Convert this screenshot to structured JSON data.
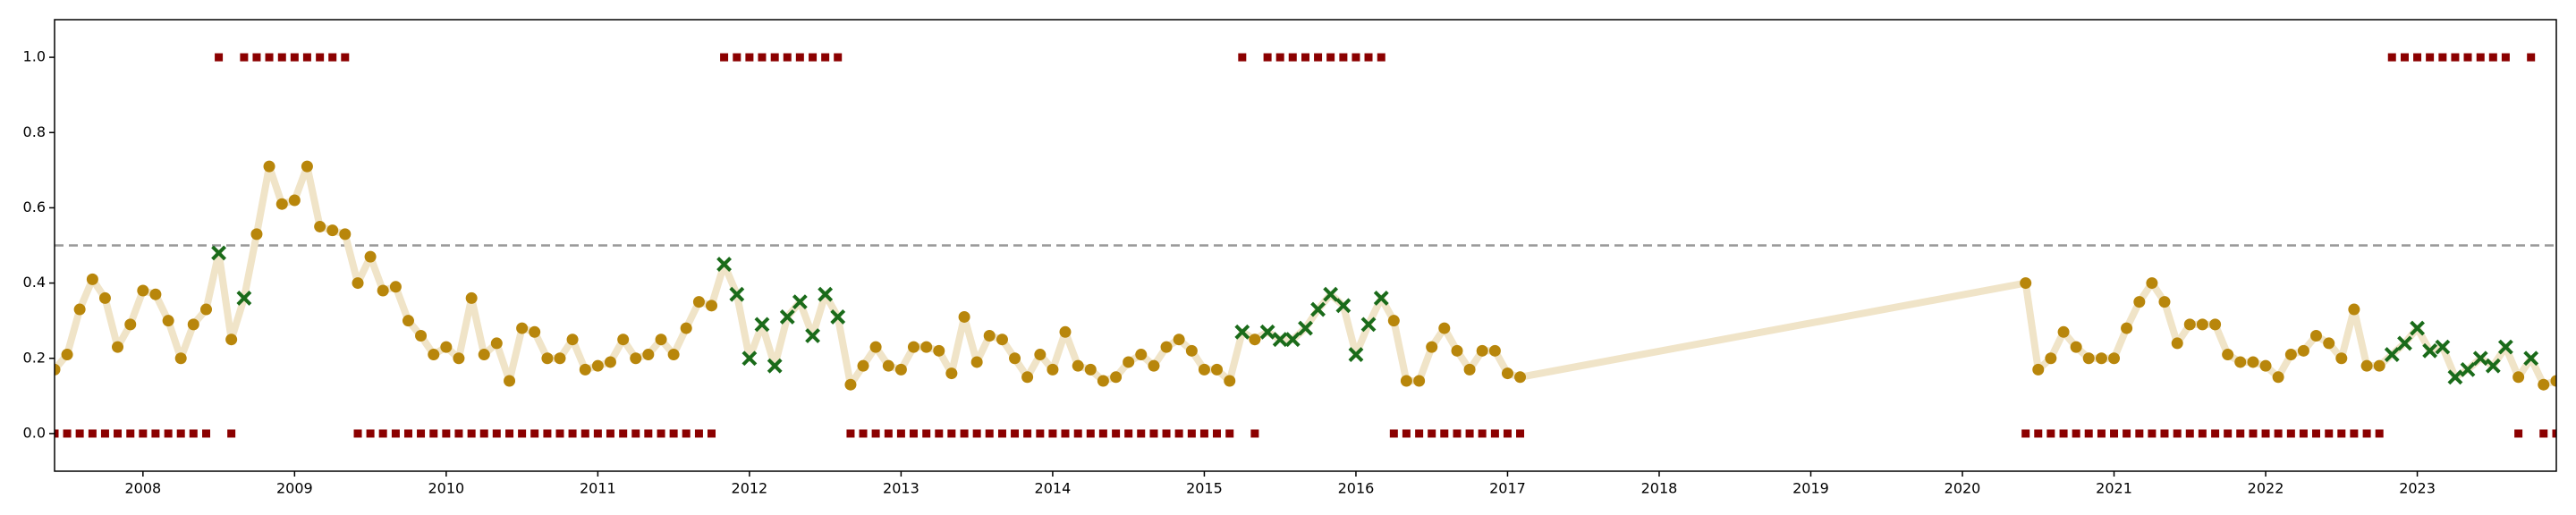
{
  "chart_data": {
    "type": "line",
    "x": [
      2007.417,
      2007.5,
      2007.583,
      2007.667,
      2007.75,
      2007.833,
      2007.917,
      2008,
      2008.083,
      2008.167,
      2008.25,
      2008.333,
      2008.417,
      2008.5,
      2008.583,
      2008.667,
      2008.75,
      2008.833,
      2008.917,
      2009,
      2009.083,
      2009.167,
      2009.25,
      2009.333,
      2009.417,
      2009.5,
      2009.583,
      2009.667,
      2009.75,
      2009.833,
      2009.917,
      2010,
      2010.083,
      2010.167,
      2010.25,
      2010.333,
      2010.417,
      2010.5,
      2010.583,
      2010.667,
      2010.75,
      2010.833,
      2010.917,
      2011,
      2011.083,
      2011.167,
      2011.25,
      2011.333,
      2011.417,
      2011.5,
      2011.583,
      2011.667,
      2011.75,
      2011.833,
      2011.917,
      2012,
      2012.083,
      2012.167,
      2012.25,
      2012.333,
      2012.417,
      2012.5,
      2012.583,
      2012.667,
      2012.75,
      2012.833,
      2012.917,
      2013,
      2013.083,
      2013.167,
      2013.25,
      2013.333,
      2013.417,
      2013.5,
      2013.583,
      2013.667,
      2013.75,
      2013.833,
      2013.917,
      2014,
      2014.083,
      2014.167,
      2014.25,
      2014.333,
      2014.417,
      2014.5,
      2014.583,
      2014.667,
      2014.75,
      2014.833,
      2014.917,
      2015,
      2015.083,
      2015.167,
      2015.25,
      2015.333,
      2015.417,
      2015.5,
      2015.583,
      2015.667,
      2015.75,
      2015.833,
      2015.917,
      2016,
      2016.083,
      2016.167,
      2016.25,
      2016.333,
      2016.417,
      2016.5,
      2016.583,
      2016.667,
      2016.75,
      2016.833,
      2016.917,
      2017,
      2017.083,
      2020.417,
      2020.5,
      2020.583,
      2020.667,
      2020.75,
      2020.833,
      2020.917,
      2021,
      2021.083,
      2021.167,
      2021.25,
      2021.333,
      2021.417,
      2021.5,
      2021.583,
      2021.667,
      2021.75,
      2021.833,
      2021.917,
      2022,
      2022.083,
      2022.167,
      2022.25,
      2022.333,
      2022.417,
      2022.5,
      2022.583,
      2022.667,
      2022.75,
      2022.833,
      2022.917,
      2023,
      2023.083,
      2023.167,
      2023.25,
      2023.333,
      2023.417,
      2023.5,
      2023.583,
      2023.667,
      2023.75,
      2023.833,
      2023.917
    ],
    "series": [
      {
        "color": "#f0e4c8",
        "marker": "none",
        "values": [
          0.17,
          0.21,
          0.33,
          0.41,
          0.36,
          0.23,
          0.29,
          0.38,
          0.37,
          0.3,
          0.2,
          0.29,
          0.33,
          0.48,
          0.25,
          0.36,
          0.53,
          0.71,
          0.61,
          0.62,
          0.71,
          0.55,
          0.54,
          0.53,
          0.4,
          0.47,
          0.38,
          0.39,
          0.3,
          0.26,
          0.21,
          0.23,
          0.2,
          0.36,
          0.21,
          0.24,
          0.14,
          0.28,
          0.27,
          0.2,
          0.2,
          0.25,
          0.17,
          0.18,
          0.19,
          0.25,
          0.2,
          0.21,
          0.25,
          0.21,
          0.28,
          0.35,
          0.34,
          0.45,
          0.37,
          0.2,
          0.29,
          0.18,
          0.31,
          0.35,
          0.26,
          0.37,
          0.31,
          0.13,
          0.18,
          0.23,
          0.18,
          0.17,
          0.23,
          0.23,
          0.22,
          0.16,
          0.31,
          0.19,
          0.26,
          0.25,
          0.2,
          0.15,
          0.21,
          0.17,
          0.27,
          0.18,
          0.17,
          0.14,
          0.15,
          0.19,
          0.21,
          0.18,
          0.23,
          0.25,
          0.22,
          0.17,
          0.17,
          0.14,
          0.27,
          0.25,
          0.27,
          0.25,
          0.25,
          0.28,
          0.33,
          0.37,
          0.34,
          0.21,
          0.29,
          0.36,
          0.3,
          0.14,
          0.14,
          0.23,
          0.28,
          0.22,
          0.17,
          0.22,
          0.22,
          0.16,
          0.15,
          0.4,
          0.17,
          0.2,
          0.27,
          0.23,
          0.2,
          0.2,
          0.2,
          0.28,
          0.35,
          0.4,
          0.35,
          0.24,
          0.29,
          0.29,
          0.29,
          0.21,
          0.19,
          0.19,
          0.18,
          0.15,
          0.21,
          0.22,
          0.26,
          0.24,
          0.2,
          0.33,
          0.18,
          0.18,
          0.21,
          0.24,
          0.28,
          0.22,
          0.23,
          0.15,
          0.17,
          0.2,
          0.18,
          0.23,
          0.15,
          0.2,
          0.13,
          0.14
        ]
      },
      {
        "color": "#b8860b",
        "marker": "o",
        "values": [
          0.17,
          0.21,
          0.33,
          0.41,
          0.36,
          0.23,
          0.29,
          0.38,
          0.37,
          0.3,
          0.2,
          0.29,
          0.33,
          null,
          0.25,
          null,
          0.53,
          0.71,
          0.61,
          0.62,
          0.71,
          0.55,
          0.54,
          0.53,
          0.4,
          0.47,
          0.38,
          0.39,
          0.3,
          0.26,
          0.21,
          0.23,
          0.2,
          0.36,
          0.21,
          0.24,
          0.14,
          0.28,
          0.27,
          0.2,
          0.2,
          0.25,
          0.17,
          0.18,
          0.19,
          0.25,
          0.2,
          0.21,
          0.25,
          0.21,
          0.28,
          0.35,
          0.34,
          null,
          null,
          null,
          null,
          null,
          null,
          null,
          null,
          null,
          null,
          0.13,
          0.18,
          0.23,
          0.18,
          0.17,
          0.23,
          0.23,
          0.22,
          0.16,
          0.31,
          0.19,
          0.26,
          0.25,
          0.2,
          0.15,
          0.21,
          0.17,
          0.27,
          0.18,
          0.17,
          0.14,
          0.15,
          0.19,
          0.21,
          0.18,
          0.23,
          0.25,
          0.22,
          0.17,
          0.17,
          0.14,
          null,
          0.25,
          null,
          null,
          null,
          null,
          null,
          null,
          null,
          null,
          null,
          null,
          0.3,
          0.14,
          0.14,
          0.23,
          0.28,
          0.22,
          0.17,
          0.22,
          0.22,
          0.16,
          0.15,
          0.4,
          0.17,
          0.2,
          0.27,
          0.23,
          0.2,
          0.2,
          0.2,
          0.28,
          0.35,
          0.4,
          0.35,
          0.24,
          0.29,
          0.29,
          0.29,
          0.21,
          0.19,
          0.19,
          0.18,
          0.15,
          0.21,
          0.22,
          0.26,
          0.24,
          0.2,
          0.33,
          0.18,
          0.18,
          null,
          null,
          null,
          null,
          null,
          null,
          null,
          null,
          null,
          null,
          0.15,
          null,
          0.13,
          0.14
        ]
      },
      {
        "color": "#1a6b1a",
        "marker": "x",
        "values": [
          null,
          null,
          null,
          null,
          null,
          null,
          null,
          null,
          null,
          null,
          null,
          null,
          null,
          0.48,
          null,
          0.36,
          null,
          null,
          null,
          null,
          null,
          null,
          null,
          null,
          null,
          null,
          null,
          null,
          null,
          null,
          null,
          null,
          null,
          null,
          null,
          null,
          null,
          null,
          null,
          null,
          null,
          null,
          null,
          null,
          null,
          null,
          null,
          null,
          null,
          null,
          null,
          null,
          null,
          0.45,
          0.37,
          0.2,
          0.29,
          0.18,
          0.31,
          0.35,
          0.26,
          0.37,
          0.31,
          null,
          null,
          null,
          null,
          null,
          null,
          null,
          null,
          null,
          null,
          null,
          null,
          null,
          null,
          null,
          null,
          null,
          null,
          null,
          null,
          null,
          null,
          null,
          null,
          null,
          null,
          null,
          null,
          null,
          null,
          null,
          0.27,
          null,
          0.27,
          0.25,
          0.25,
          0.28,
          0.33,
          0.37,
          0.34,
          0.21,
          0.29,
          0.36,
          null,
          null,
          null,
          null,
          null,
          null,
          null,
          null,
          null,
          null,
          null,
          null,
          null,
          null,
          null,
          null,
          null,
          null,
          null,
          null,
          null,
          null,
          null,
          null,
          null,
          null,
          null,
          null,
          null,
          null,
          null,
          null,
          null,
          null,
          null,
          null,
          null,
          null,
          null,
          null,
          0.21,
          0.24,
          0.28,
          0.22,
          0.23,
          0.15,
          0.17,
          0.2,
          0.18,
          0.23,
          null,
          0.2,
          null,
          null
        ]
      },
      {
        "color": "#8b0000",
        "marker": "s",
        "values": [
          0,
          0,
          0,
          0,
          0,
          0,
          0,
          0,
          0,
          0,
          0,
          0,
          0,
          1,
          0,
          1,
          1,
          1,
          1,
          1,
          1,
          1,
          1,
          1,
          0,
          0,
          0,
          0,
          0,
          0,
          0,
          0,
          0,
          0,
          0,
          0,
          0,
          0,
          0,
          0,
          0,
          0,
          0,
          0,
          0,
          0,
          0,
          0,
          0,
          0,
          0,
          0,
          0,
          1,
          1,
          1,
          1,
          1,
          1,
          1,
          1,
          1,
          1,
          0,
          0,
          0,
          0,
          0,
          0,
          0,
          0,
          0,
          0,
          0,
          0,
          0,
          0,
          0,
          0,
          0,
          0,
          0,
          0,
          0,
          0,
          0,
          0,
          0,
          0,
          0,
          0,
          0,
          0,
          0,
          1,
          0,
          1,
          1,
          1,
          1,
          1,
          1,
          1,
          1,
          1,
          1,
          0,
          0,
          0,
          0,
          0,
          0,
          0,
          0,
          0,
          0,
          0,
          0,
          0,
          0,
          0,
          0,
          0,
          0,
          0,
          0,
          0,
          0,
          0,
          0,
          0,
          0,
          0,
          0,
          0,
          0,
          0,
          0,
          0,
          0,
          0,
          0,
          0,
          0,
          0,
          0,
          1,
          1,
          1,
          1,
          1,
          1,
          1,
          1,
          1,
          1,
          0,
          1,
          0,
          0
        ]
      }
    ],
    "hline": {
      "y": 0.5,
      "color": "#999999",
      "dash": true
    },
    "xlim": [
      2007.417,
      2023.917
    ],
    "xticks": [
      2008,
      2009,
      2010,
      2011,
      2012,
      2013,
      2014,
      2015,
      2016,
      2017,
      2018,
      2019,
      2020,
      2021,
      2022,
      2023
    ],
    "ylim": [
      -0.1,
      1.1
    ],
    "yticks": [
      {
        "value": 0,
        "label": "0.0"
      },
      0.2,
      0.4,
      0.6,
      0.8,
      {
        "value": 1,
        "label": "1.0"
      }
    ]
  }
}
